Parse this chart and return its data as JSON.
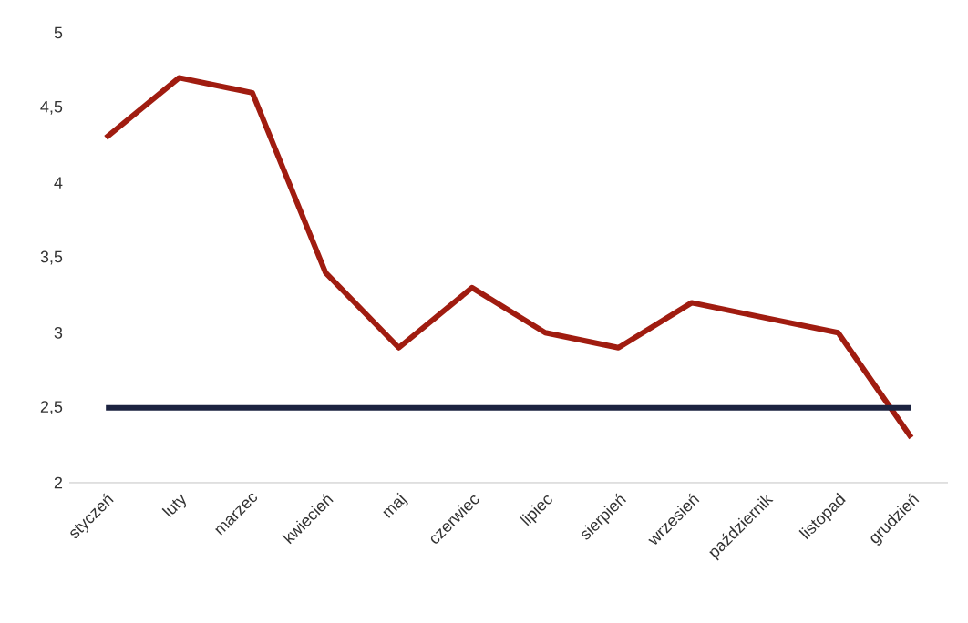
{
  "chart_data": {
    "type": "line",
    "categories": [
      "styczeń",
      "luty",
      "marzec",
      "kwiecień",
      "maj",
      "czerwiec",
      "lipiec",
      "sierpień",
      "wrzesień",
      "październik",
      "listopad",
      "grudzień"
    ],
    "series": [
      {
        "color": "#a01c10",
        "values": [
          4.3,
          4.7,
          4.6,
          3.4,
          2.9,
          3.3,
          3.0,
          2.9,
          3.2,
          3.1,
          3.0,
          2.3
        ]
      }
    ],
    "ylim": [
      2,
      5
    ],
    "yticks": [
      2,
      {
        "value": 2.5,
        "label": "2,5"
      },
      3,
      {
        "value": 3.5,
        "label": "3,5"
      },
      4,
      {
        "value": 4.5,
        "label": "4,5"
      },
      5
    ],
    "ref_lines": [
      {
        "axis": "y",
        "value": 2.5,
        "color": "#1c2340"
      }
    ],
    "grid": false,
    "marker": "none",
    "line_style": "solid"
  }
}
